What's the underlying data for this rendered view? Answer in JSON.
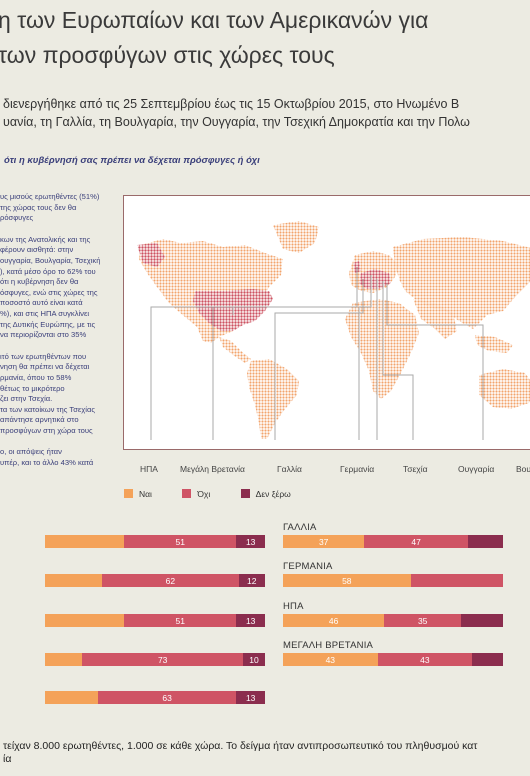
{
  "header": {
    "title_line1": "η των Ευρωπαίων και των Αμερικανών για",
    "title_line2": " των προσφύγων στις χώρες τους",
    "subtitle_line1": "διενεργήθηκε από τις 25 Σεπτεμβρίου έως τις 15 Οκτωβρίου 2015, στο Ηνωμένο Β",
    "subtitle_line2": "υανία, τη Γαλλία, τη Βουλγαρία, την Ουγγαρία, την Τσεχική Δημοκρατία και την Πολω"
  },
  "question": "ότι η κυβέρνησή σας πρέπει να δέχεται πρόσφυγες ή όχι",
  "side_text": {
    "p1": [
      "υς μισούς ερωτηθέντες (51%)",
      "της χώρας τους δεν θα",
      "ρόσφυγες"
    ],
    "p2": [
      "κων της Ανατολικής και της",
      "φέρουν αισθητά: στην",
      "ουγγαρία, Βουλγαρία, Τσεχική",
      "), κατά μέσο όρο το 62% του",
      "ότι η κυβέρνηση δεν θα",
      "όσφυγες, ενώ στις χώρες της",
      "ποσοστό αυτό είναι κατά",
      "%), και στις ΗΠΑ συγκλίνει",
      " της Δυτικής Ευρώπης,  με τις",
      " να περιορίζονται στο 35%"
    ],
    "p3": [
      "ιτό των ερωτηθέντων που",
      "νηση θα πρέπει να δέχεται",
      "ρμανία, όπου το 58%",
      "θέτως το μικρότερο",
      "ζει στην Τσεχία.",
      "τα των κατοίκων της Τσεχίας",
      "απάντησε αρνητικά στο",
      " προσφύγων στη χώρα τους"
    ],
    "p4": [
      "ο, οι απόψεις ήταν",
      "υπέρ, και το άλλο 43% κατά"
    ]
  },
  "map": {
    "labels": [
      "ΗΠΑ",
      "Μεγάλη Βρετανία",
      "Γαλλία",
      "Γερμανία",
      "Τσεχία",
      "Ουγγαρία",
      "Βου"
    ],
    "highlighted_countries": [
      "ΗΠΑ",
      "Μεγάλη Βρετανία",
      "Γαλλία",
      "Γερμανία",
      "Τσεχία",
      "Ουγγαρία",
      "Βουλγαρία"
    ]
  },
  "legend": [
    {
      "label": "Ναι",
      "color": "#f4a259"
    },
    {
      "label": "Όχι",
      "color": "#cf5465"
    },
    {
      "label": "Δεν ξέρω",
      "color": "#8b2d4e"
    }
  ],
  "colors": {
    "yes": "#f4a259",
    "no": "#cf5465",
    "dk": "#8b2d4e",
    "land": "#f0a870",
    "background": "#ecebe2"
  },
  "chart_data": {
    "type": "bar",
    "stacked": true,
    "orientation": "horizontal",
    "series_names": [
      "Ναι",
      "Όχι",
      "Δεν ξέρω"
    ],
    "left_column": [
      {
        "name": "",
        "yes": null,
        "no": 51,
        "dk": 13
      },
      {
        "name": "",
        "yes": null,
        "no": 62,
        "dk": 12
      },
      {
        "name": "",
        "yes": null,
        "no": 51,
        "dk": 13
      },
      {
        "name": "",
        "yes": null,
        "no": 73,
        "dk": 10
      },
      {
        "name": "",
        "yes": null,
        "no": 63,
        "dk": 13
      }
    ],
    "right_column": [
      {
        "name": "ΓΑΛΛΙΑ",
        "yes": 37,
        "no": 47,
        "dk": null
      },
      {
        "name": "ΓΕΡΜΑΝΙΑ",
        "yes": 58,
        "no": null,
        "dk": null
      },
      {
        "name": "ΗΠΑ",
        "yes": 46,
        "no": 35,
        "dk": null
      },
      {
        "name": "ΜΕΓΑΛΗ ΒΡΕΤΑΝΙΑ",
        "yes": 43,
        "no": 43,
        "dk": null
      }
    ]
  },
  "footer": {
    "line1": "τείχαν 8.000 ερωτηθέντες, 1.000 σε κάθε χώρα. Το δείγμα ήταν αντιπροσωπευτικό του πληθυσμού κατ",
    "line2": "ία"
  }
}
